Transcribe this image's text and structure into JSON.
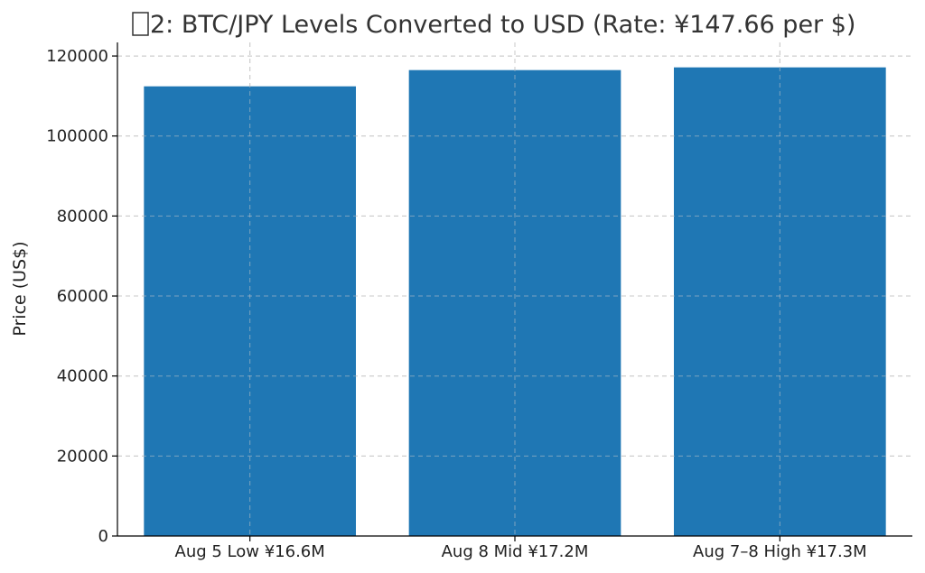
{
  "chart_data": {
    "type": "bar",
    "title": "2: BTC/JPY Levels Converted to USD (Rate: ¥147.66 per $)",
    "title_icon": "missing-glyph-box",
    "xlabel": "",
    "ylabel": "Price (US$)",
    "categories": [
      "Aug 5 Low ¥16.6M",
      "Aug 8 Mid ¥17.2M",
      "Aug 7–8 High ¥17.3M"
    ],
    "values": [
      112420,
      116480,
      117160
    ],
    "ylim": [
      0,
      123400
    ],
    "yticks": [
      0,
      20000,
      40000,
      60000,
      80000,
      100000,
      120000
    ],
    "ytick_labels": [
      "0",
      "20000",
      "40000",
      "60000",
      "80000",
      "100000",
      "120000"
    ],
    "grid": true,
    "legend": "none",
    "bar_color": "#1f77b4"
  }
}
